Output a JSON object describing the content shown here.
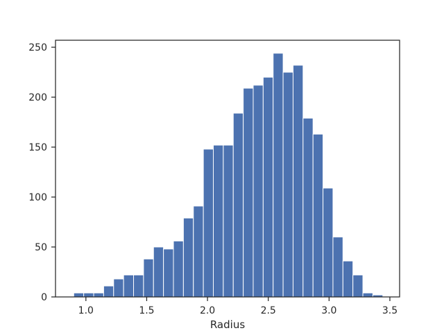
{
  "chart_data": {
    "type": "bar",
    "subtype": "histogram",
    "title": "",
    "xlabel": "Radius",
    "ylabel": "",
    "xlim": [
      0.75,
      3.58
    ],
    "ylim": [
      0,
      257
    ],
    "grid": false,
    "legend": "none",
    "bar_color": "#4c72b0",
    "x_ticks": [
      {
        "value": 1.0,
        "label": "1.0"
      },
      {
        "value": 1.5,
        "label": "1.5"
      },
      {
        "value": 2.0,
        "label": "2.0"
      },
      {
        "value": 2.5,
        "label": "2.5"
      },
      {
        "value": 3.0,
        "label": "3.0"
      },
      {
        "value": 3.5,
        "label": "3.5"
      }
    ],
    "y_ticks": [
      {
        "value": 0,
        "label": "0"
      },
      {
        "value": 50,
        "label": "50"
      },
      {
        "value": 100,
        "label": "100"
      },
      {
        "value": 150,
        "label": "150"
      },
      {
        "value": 200,
        "label": "200"
      },
      {
        "value": 250,
        "label": "250"
      }
    ],
    "bin_edges": [
      0.9,
      0.982,
      1.064,
      1.146,
      1.228,
      1.31,
      1.392,
      1.474,
      1.556,
      1.638,
      1.72,
      1.802,
      1.884,
      1.966,
      2.048,
      2.13,
      2.212,
      2.294,
      2.376,
      2.458,
      2.54,
      2.622,
      2.704,
      2.786,
      2.868,
      2.95,
      3.032,
      3.114,
      3.196,
      3.278,
      3.36,
      3.442
    ],
    "values": [
      4,
      4,
      4,
      11,
      18,
      22,
      22,
      38,
      50,
      48,
      56,
      79,
      91,
      148,
      152,
      152,
      184,
      209,
      212,
      220,
      244,
      225,
      232,
      179,
      163,
      109,
      60,
      36,
      22,
      4,
      2
    ]
  }
}
